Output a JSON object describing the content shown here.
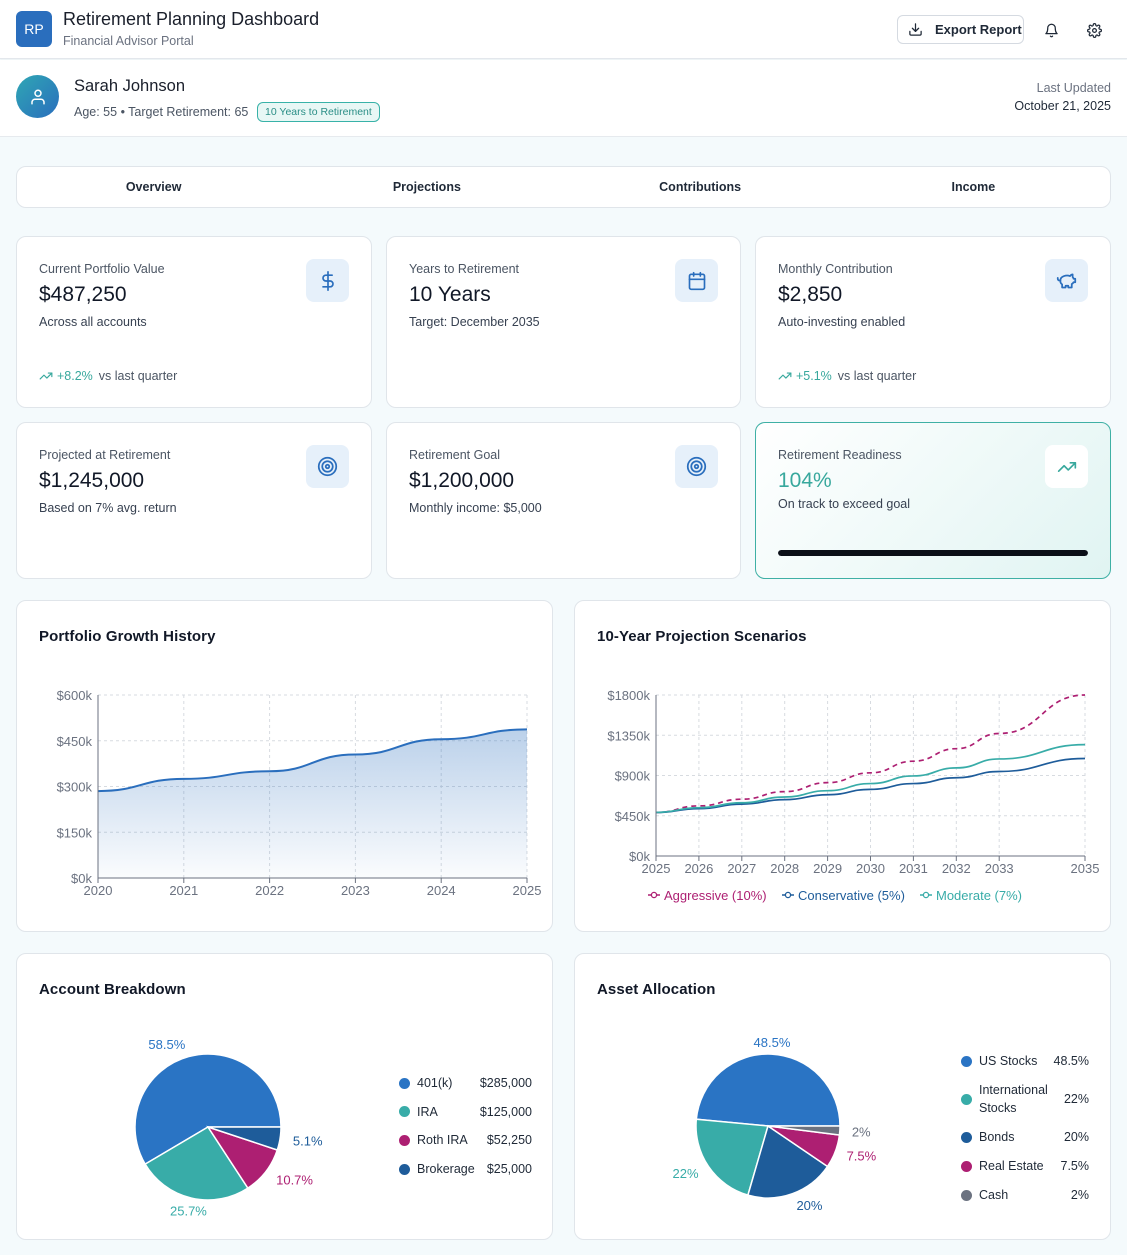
{
  "header": {
    "logo": "RP",
    "title": "Retirement Planning Dashboard",
    "subtitle": "Financial Advisor Portal",
    "export_label": "Export Report"
  },
  "client": {
    "name": "Sarah Johnson",
    "meta": "Age: 55 • Target Retirement: 65",
    "badge": "10 Years to Retirement",
    "updated_label": "Last Updated",
    "updated_date": "October 21, 2025"
  },
  "tabs": [
    "Overview",
    "Projections",
    "Contributions",
    "Income"
  ],
  "stats": [
    {
      "label": "Current Portfolio Value",
      "value": "$487,250",
      "sub": "Across all accounts",
      "trend_pct": "+8.2%",
      "trend_text": "vs last quarter",
      "icon": "dollar-icon"
    },
    {
      "label": "Years to Retirement",
      "value": "10 Years",
      "sub": "Target: December 2035",
      "icon": "calendar-icon"
    },
    {
      "label": "Monthly Contribution",
      "value": "$2,850",
      "sub": "Auto-investing enabled",
      "trend_pct": "+5.1%",
      "trend_text": "vs last quarter",
      "icon": "piggy-bank-icon"
    },
    {
      "label": "Projected at Retirement",
      "value": "$1,245,000",
      "sub": "Based on 7% avg. return",
      "icon": "target-icon"
    },
    {
      "label": "Retirement Goal",
      "value": "$1,200,000",
      "sub": "Monthly income: $5,000",
      "icon": "target-icon"
    },
    {
      "label": "Retirement Readiness",
      "value": "104%",
      "sub": "On track to exceed goal",
      "progress": 1.0,
      "icon": "trending-up-icon"
    }
  ],
  "colors": {
    "primary": "#2a6ebd",
    "teal": "#38aca8",
    "magenta": "#ad1f72",
    "navy": "#1e5c9a",
    "gray": "#6b7280"
  },
  "chart_data": [
    {
      "type": "area",
      "title": "Portfolio Growth History",
      "x": [
        2020,
        2021,
        2022,
        2023,
        2024,
        2025
      ],
      "values": [
        285000,
        325000,
        350000,
        405000,
        455000,
        487250
      ],
      "ylim": [
        0,
        600000
      ],
      "yticks": [
        "$0k",
        "$150k",
        "$300k",
        "$450k",
        "$600k"
      ],
      "ytick_values": [
        0,
        150000,
        300000,
        450000,
        600000
      ],
      "grid": true
    },
    {
      "type": "line",
      "title": "10-Year Projection Scenarios",
      "x": [
        2025,
        2026,
        2027,
        2028,
        2029,
        2030,
        2031,
        2032,
        2033,
        2035
      ],
      "xticks": [
        "2025",
        "2026",
        "2027",
        "2028",
        "2029",
        "2030",
        "2031",
        "2032",
        "2033",
        "2035"
      ],
      "series": [
        {
          "name": "Aggressive (10%)",
          "color": "#ad1f72",
          "dashed": true,
          "values": [
            487,
            560,
            635,
            720,
            820,
            930,
            1060,
            1200,
            1370,
            1800
          ]
        },
        {
          "name": "Conservative (5%)",
          "color": "#1e5c9a",
          "dashed": false,
          "values": [
            487,
            530,
            580,
            630,
            685,
            745,
            810,
            875,
            945,
            1090
          ]
        },
        {
          "name": "Moderate (7%)",
          "color": "#38aca8",
          "dashed": false,
          "values": [
            487,
            540,
            595,
            660,
            730,
            810,
            895,
            985,
            1085,
            1245
          ]
        }
      ],
      "ylim": [
        0,
        1800
      ],
      "yticks": [
        "$0k",
        "$450k",
        "$900k",
        "$1350k",
        "$1800k"
      ],
      "ytick_values": [
        0,
        450,
        900,
        1350,
        1800
      ],
      "legend_position": "bottom",
      "grid": true
    },
    {
      "type": "pie",
      "title": "Account Breakdown",
      "slices": [
        {
          "name": "401(k)",
          "amount": "$285,000",
          "value": 58.5,
          "label": "58.5%",
          "color": "#2a74c4"
        },
        {
          "name": "IRA",
          "amount": "$125,000",
          "value": 25.7,
          "label": "25.7%",
          "color": "#38aca8"
        },
        {
          "name": "Roth IRA",
          "amount": "$52,250",
          "value": 10.7,
          "label": "10.7%",
          "color": "#ad1f72"
        },
        {
          "name": "Brokerage",
          "amount": "$25,000",
          "value": 5.1,
          "label": "5.1%",
          "color": "#1e5c9a"
        }
      ]
    },
    {
      "type": "pie",
      "title": "Asset Allocation",
      "slices": [
        {
          "name": "US Stocks",
          "amount": "48.5%",
          "value": 48.5,
          "label": "48.5%",
          "color": "#2a74c4"
        },
        {
          "name": "International Stocks",
          "amount": "22%",
          "value": 22,
          "label": "22%",
          "color": "#38aca8"
        },
        {
          "name": "Bonds",
          "amount": "20%",
          "value": 20,
          "label": "20%",
          "color": "#1e5c9a"
        },
        {
          "name": "Real Estate",
          "amount": "7.5%",
          "value": 7.5,
          "label": "7.5%",
          "color": "#ad1f72"
        },
        {
          "name": "Cash",
          "amount": "2%",
          "value": 2,
          "label": "2%",
          "color": "#6b7280"
        }
      ]
    }
  ]
}
